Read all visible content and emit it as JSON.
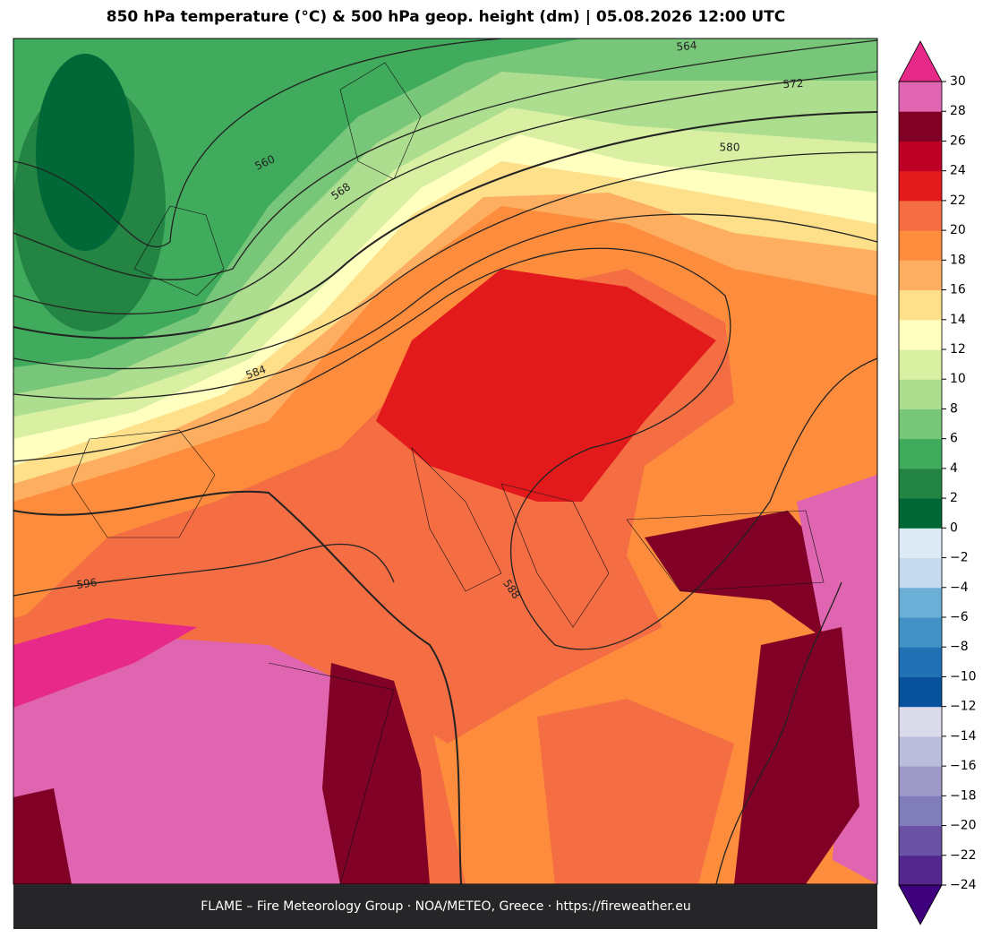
{
  "title": "850 hPa temperature (°C) & 500 hPa geop. height (dm)  |  05.08.2026 12:00 UTC",
  "footer": "FLAME – Fire Meteorology Group · NOA/METEO, Greece · https://fireweather.eu",
  "contour_labels": [
    "564",
    "572",
    "580",
    "560",
    "568",
    "584",
    "588",
    "596"
  ],
  "colorbar": {
    "ticks": [
      {
        "value": -24,
        "label": "−24"
      },
      {
        "value": -22,
        "label": "−22"
      },
      {
        "value": -20,
        "label": "−20"
      },
      {
        "value": -18,
        "label": "−18"
      },
      {
        "value": -16,
        "label": "−16"
      },
      {
        "value": -14,
        "label": "−14"
      },
      {
        "value": -12,
        "label": "−12"
      },
      {
        "value": -10,
        "label": "−10"
      },
      {
        "value": -8,
        "label": "−8"
      },
      {
        "value": -6,
        "label": "−6"
      },
      {
        "value": -4,
        "label": "−4"
      },
      {
        "value": -2,
        "label": "−2"
      },
      0,
      2,
      4,
      6,
      8,
      10,
      12,
      14,
      16,
      18,
      20,
      22,
      24,
      26,
      28,
      30
    ],
    "colors": [
      "#54278f",
      "#6a51a3",
      "#807dba",
      "#9e9ac8",
      "#bcbddc",
      "#dadaeb",
      "#08519c",
      "#2171b5",
      "#4292c6",
      "#6baed6",
      "#c6dbef",
      "#deebf7",
      "#006837",
      "#238443",
      "#41ab5d",
      "#78c679",
      "#addd8e",
      "#d9f0a3",
      "#ffffbf",
      "#fee08b",
      "#fdae61",
      "#fd8d3c",
      "#f46d43",
      "#e31a1c",
      "#bd0026",
      "#800026",
      "#df65b0"
    ],
    "under_color": "#3f007d",
    "over_color": "#e7298a"
  }
}
